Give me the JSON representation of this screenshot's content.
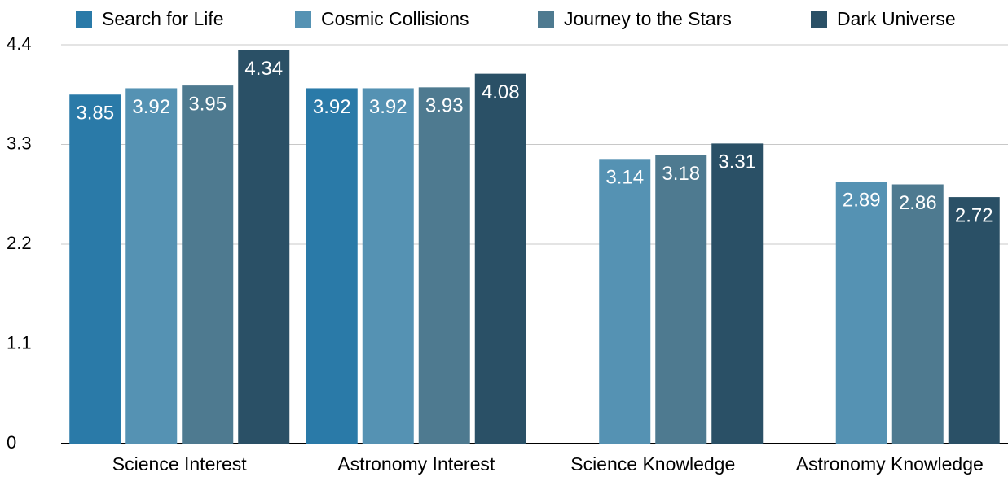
{
  "chart_data": {
    "type": "bar",
    "categories": [
      "Science Interest",
      "Astronomy Interest",
      "Science Knowledge",
      "Astronomy Knowledge"
    ],
    "series": [
      {
        "name": "Search for Life",
        "color": "#2a7aa8",
        "values": [
          3.85,
          3.92,
          null,
          null
        ]
      },
      {
        "name": "Cosmic Collisions",
        "color": "#5592b3",
        "values": [
          3.92,
          3.92,
          3.14,
          2.89
        ]
      },
      {
        "name": "Journey to the Stars",
        "color": "#4e7a90",
        "values": [
          3.95,
          3.93,
          3.18,
          2.86
        ]
      },
      {
        "name": "Dark Universe",
        "color": "#2a5066",
        "values": [
          4.34,
          4.08,
          3.31,
          2.72
        ]
      }
    ],
    "ylim": [
      0,
      4.4
    ],
    "yticks": [
      0,
      1.1,
      2.2,
      3.3,
      4.4
    ],
    "grid": true,
    "legend": "top"
  }
}
